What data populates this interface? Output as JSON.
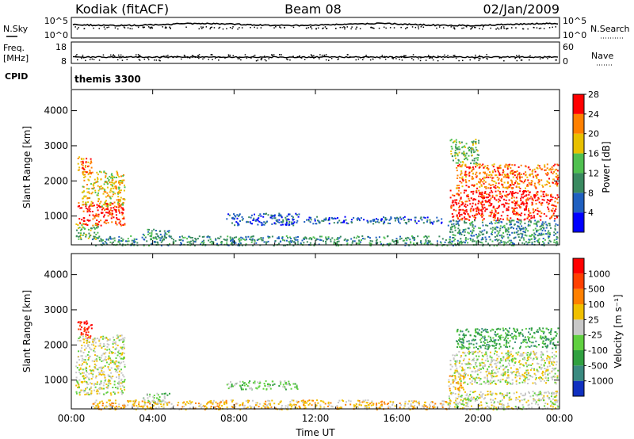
{
  "header": {
    "station": "Kodiak (fitACF)",
    "beam": "Beam 08",
    "date": "02/Jan/2009"
  },
  "nsky_panel": {
    "left_label": "N.Sky",
    "left_ticks": [
      "10^5",
      "10^0"
    ],
    "right_label": "N.Search",
    "right_ticks": [
      "10^5",
      "10^0"
    ]
  },
  "freq_panel": {
    "left_label_1": "Freq.",
    "left_label_2": "[MHz]",
    "left_ticks": [
      "18",
      "8"
    ],
    "right_label": "Nave",
    "right_ticks": [
      "60",
      "0"
    ]
  },
  "cpid_panel": {
    "label": "CPID",
    "program": "themis 3300"
  },
  "chart_data": [
    {
      "type": "heatmap",
      "panel": "power",
      "ylabel": "Slant Range [km]",
      "xlabel": "",
      "x_ticks": [
        "00:00",
        "04:00",
        "08:00",
        "12:00",
        "16:00",
        "20:00",
        "00:00"
      ],
      "y_ticks": [
        "1000",
        "2000",
        "3000",
        "4000"
      ],
      "ylim": [
        180,
        4600
      ],
      "xlim_hours": [
        0,
        24
      ],
      "colorbar": {
        "label": "Power [dB]",
        "ticks": [
          "4",
          "8",
          "12",
          "16",
          "20",
          "24",
          "28"
        ],
        "colors": [
          "#0000ff",
          "#2060c0",
          "#3a8a60",
          "#50c050",
          "#e8c000",
          "#ff8000",
          "#ff0000"
        ]
      },
      "regions": [
        {
          "t0": 0.3,
          "t1": 1.0,
          "r0": 2200,
          "r1": 2700,
          "level": 5
        },
        {
          "t0": 0.3,
          "t1": 2.6,
          "r0": 750,
          "r1": 1400,
          "level": 6
        },
        {
          "t0": 0.5,
          "t1": 2.6,
          "r0": 1300,
          "r1": 2300,
          "level": 4
        },
        {
          "t0": 0.2,
          "t1": 1.3,
          "r0": 350,
          "r1": 800,
          "level": 3
        },
        {
          "t0": 3.5,
          "t1": 4.8,
          "r0": 350,
          "r1": 650,
          "level": 2
        },
        {
          "t0": 7.6,
          "t1": 11.2,
          "r0": 750,
          "r1": 1100,
          "level": 1
        },
        {
          "t0": 11.4,
          "t1": 18.2,
          "r0": 800,
          "r1": 1000,
          "level": 1
        },
        {
          "t0": 1.0,
          "t1": 18.6,
          "r0": 180,
          "r1": 450,
          "level": 2
        },
        {
          "t0": 18.9,
          "t1": 23.9,
          "r0": 1800,
          "r1": 2500,
          "level": 5
        },
        {
          "t0": 18.6,
          "t1": 23.9,
          "r0": 900,
          "r1": 1750,
          "level": 6
        },
        {
          "t0": 18.6,
          "t1": 20.0,
          "r0": 2500,
          "r1": 3200,
          "level": 3
        },
        {
          "t0": 18.5,
          "t1": 23.9,
          "r0": 180,
          "r1": 900,
          "level": 2
        }
      ]
    },
    {
      "type": "heatmap",
      "panel": "velocity",
      "ylabel": "Slant Range [km]",
      "xlabel": "Time UT",
      "x_ticks": [
        "00:00",
        "04:00",
        "08:00",
        "12:00",
        "16:00",
        "20:00",
        "00:00"
      ],
      "y_ticks": [
        "1000",
        "2000",
        "3000",
        "4000"
      ],
      "ylim": [
        180,
        4600
      ],
      "xlim_hours": [
        0,
        24
      ],
      "colorbar": {
        "label": "Velocity [m s⁻¹]",
        "ticks": [
          "1000",
          "500",
          "100",
          "25",
          "-25",
          "-100",
          "-500",
          "-1000"
        ],
        "colors": [
          "#1030c0",
          "#3a8a80",
          "#30a040",
          "#60d040",
          "#c8c8c8",
          "#f0c000",
          "#ff8000",
          "#ff4000",
          "#ff0000"
        ]
      },
      "regions": [
        {
          "t0": 0.3,
          "t1": 1.0,
          "r0": 2200,
          "r1": 2700,
          "level": 8
        },
        {
          "t0": 0.2,
          "t1": 2.6,
          "r0": 600,
          "r1": 2300,
          "level": 4
        },
        {
          "t0": 3.5,
          "t1": 4.8,
          "r0": 350,
          "r1": 650,
          "level": 3
        },
        {
          "t0": 7.6,
          "t1": 11.2,
          "r0": 750,
          "r1": 1000,
          "level": 3
        },
        {
          "t0": 1.0,
          "t1": 18.6,
          "r0": 180,
          "r1": 450,
          "level": 5
        },
        {
          "t0": 18.6,
          "t1": 23.9,
          "r0": 900,
          "r1": 1850,
          "level": 4
        },
        {
          "t0": 18.9,
          "t1": 23.9,
          "r0": 1900,
          "r1": 2500,
          "level": 2
        },
        {
          "t0": 18.5,
          "t1": 19.3,
          "r0": 700,
          "r1": 1200,
          "level": 5
        },
        {
          "t0": 18.5,
          "t1": 23.9,
          "r0": 180,
          "r1": 700,
          "level": 4
        }
      ]
    }
  ]
}
